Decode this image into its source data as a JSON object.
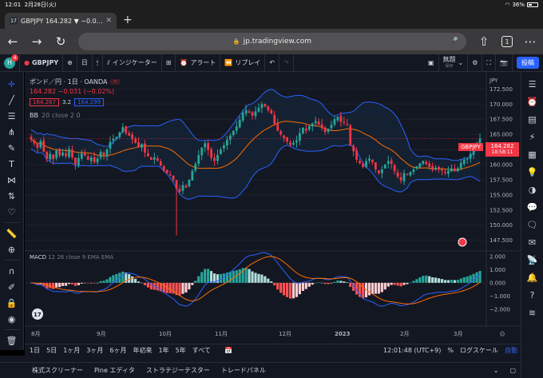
{
  "status_bar": {
    "time": "12:01",
    "date": "2月28日(火)",
    "battery": "36%"
  },
  "browser": {
    "tab_title": "GBPJPY 164.282 ▼ −0.0…",
    "url": "jp.tradingview.com",
    "tab_count": "1"
  },
  "toolbar": {
    "symbol": "GBPJPY",
    "interval": "日",
    "indicators_label": "インジケーター",
    "alert_label": "アラート",
    "replay_label": "リプレイ",
    "layout_name": "無題",
    "layout_sub": "保存",
    "publish_label": "投稿",
    "avatar_letter": "H",
    "notification_count": "4"
  },
  "legend": {
    "title": "ポンド／円 · 1日 · OANDA",
    "change": "164.282  −0.031  (−0.02%)",
    "sell_price": "164.267",
    "spread": "3.2",
    "buy_price": "164.299",
    "bb_label": "BB",
    "bb_params": "20 close 2 0"
  },
  "macd_legend": {
    "label": "MACD",
    "params": "12 26 close 9 EMA EMA"
  },
  "price_axis": {
    "currency": "JPY",
    "ticks": [
      "172.500",
      "170.000",
      "167.500",
      "165.000",
      "162.500",
      "160.000",
      "157.500",
      "155.000",
      "152.500",
      "150.000",
      "147.500"
    ],
    "current_price": "164.282",
    "countdown": "18:58:11",
    "symbol_tag": "GBPJPY"
  },
  "macd_axis": {
    "ticks": [
      "2.000",
      "1.000",
      "0.000",
      "−1.000",
      "−2.000"
    ]
  },
  "time_axis": {
    "labels": [
      "8月",
      "9月",
      "10月",
      "11月",
      "12月",
      "2023",
      "2月",
      "3月"
    ]
  },
  "timeframes": [
    "1日",
    "5日",
    "1ヶ月",
    "3ヶ月",
    "6ヶ月",
    "年初来",
    "1年",
    "5年",
    "すべて"
  ],
  "timebar": {
    "clock": "12:01:48 (UTC+9)",
    "percent": "%",
    "log": "ログスケール",
    "auto": "自動"
  },
  "bottom_panels": [
    "株式スクリーナー",
    "Pine エディタ",
    "ストラテジーテスター",
    "トレードパネル"
  ],
  "colors": {
    "up": "#26a69a",
    "down": "#f23645",
    "bb_band": "#2962ff",
    "bb_basis": "#ff6d00",
    "background": "#131722",
    "accent": "#2962ff"
  },
  "chart_data": {
    "type": "candlestick",
    "symbol": "GBPJPY",
    "interval": "1D",
    "ylim": [
      146,
      174
    ],
    "x_labels": [
      "8月",
      "9月",
      "10月",
      "11月",
      "12月",
      "2023",
      "2月",
      "3月"
    ],
    "close_series": [
      164.2,
      163.5,
      162.8,
      163.9,
      162.1,
      161.0,
      161.8,
      160.9,
      162.4,
      161.5,
      162.0,
      161.4,
      162.6,
      161.2,
      160.0,
      161.1,
      161.9,
      161.5,
      160.8,
      161.2,
      160.4,
      161.0,
      162.1,
      161.5,
      162.5,
      163.8,
      164.3,
      164.6,
      165.3,
      166.2,
      165.2,
      164.8,
      164.2,
      163.6,
      163.0,
      163.4,
      162.0,
      161.4,
      160.8,
      161.2,
      160.6,
      159.8,
      159.0,
      158.6,
      158.2,
      157.5,
      156.0,
      155.5,
      156.6,
      156.2,
      157.5,
      159.0,
      160.1,
      161.6,
      162.8,
      163.5,
      162.4,
      161.1,
      160.6,
      161.6,
      162.5,
      163.2,
      164.1,
      164.8,
      165.6,
      166.3,
      167.4,
      168.6,
      169.0,
      168.6,
      168.1,
      168.8,
      169.4,
      170.0,
      169.6,
      169.0,
      168.4,
      166.8,
      165.6,
      165.0,
      164.4,
      163.8,
      163.2,
      163.6,
      164.0,
      165.2,
      166.1,
      165.6,
      166.4,
      166.8,
      167.2,
      166.6,
      166.2,
      165.4,
      165.9,
      166.6,
      167.5,
      167.9,
      167.1,
      166.9,
      166.6,
      163.2,
      162.2,
      160.8,
      160.2,
      159.6,
      160.6,
      161.0,
      160.4,
      159.2,
      158.6,
      159.2,
      160.0,
      160.6,
      160.1,
      158.9,
      158.0,
      157.4,
      158.6,
      158.3,
      158.8,
      159.2,
      159.7,
      160.2,
      160.6,
      160.1,
      159.6,
      159.1,
      159.5,
      159.2,
      159.0,
      158.6,
      159.0,
      159.4,
      158.9,
      159.4,
      160.3,
      160.8,
      161.0,
      161.8,
      162.6,
      163.6,
      164.3
    ],
    "macd": {
      "series": [
        {
          "name": "MACD",
          "color": "#2962ff"
        },
        {
          "name": "Signal",
          "color": "#ff6d00"
        },
        {
          "name": "Histogram"
        }
      ],
      "ylim": [
        -2.8,
        2.3
      ]
    }
  }
}
